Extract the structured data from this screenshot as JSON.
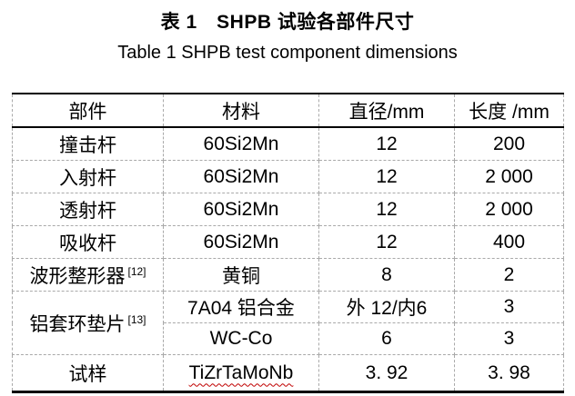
{
  "caption": {
    "zh": "表 1　SHPB 试验各部件尺寸",
    "en": "Table 1 SHPB test component dimensions"
  },
  "table": {
    "headers": {
      "component": "部件",
      "material": "材料",
      "diameter": "直径/mm",
      "length": "长度 /mm"
    },
    "rows": [
      {
        "component": "撞击杆",
        "material": "60Si2Mn",
        "diameter": "12",
        "length": "200"
      },
      {
        "component": "入射杆",
        "material": "60Si2Mn",
        "diameter": "12",
        "length": "2 000"
      },
      {
        "component": "透射杆",
        "material": "60Si2Mn",
        "diameter": "12",
        "length": "2 000"
      },
      {
        "component": "吸收杆",
        "material": "60Si2Mn",
        "diameter": "12",
        "length": "400"
      },
      {
        "component": "波形整形器",
        "component_ref": "[12]",
        "material": "黄铜",
        "diameter": "8",
        "length": "2"
      },
      {
        "component": "铝套环垫片",
        "component_ref": "[13]",
        "material": "7A04 铝合金",
        "diameter": "外 12/内6",
        "length": "3"
      },
      {
        "material": "WC-Co",
        "diameter": "6",
        "length": "3"
      },
      {
        "component": "试样",
        "material": "TiZrTaMoNb",
        "diameter": "3. 92",
        "length": "3. 98"
      }
    ]
  },
  "colors": {
    "text": "#000000",
    "solid_rule": "#000000",
    "dashed_gridline": "#a9a9a9",
    "misspell_underline": "#c00000"
  }
}
